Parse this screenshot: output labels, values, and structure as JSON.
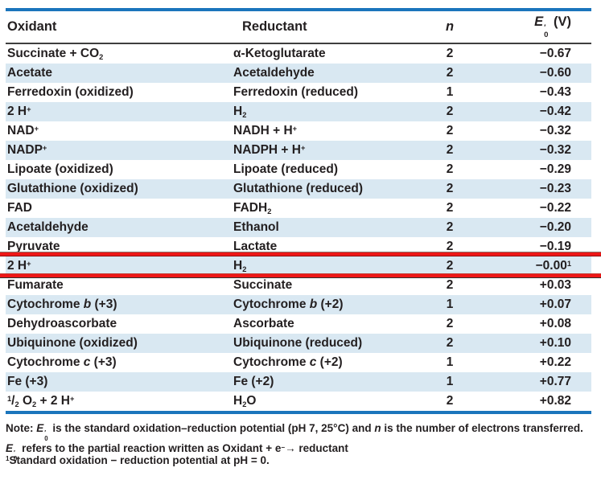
{
  "colors": {
    "rule_blue": "#1b75bc",
    "row_alt_blue": "#d9e8f2",
    "highlight_red": "#ee1717",
    "header_rule": "#3f3f3f",
    "text": "#231f20"
  },
  "table": {
    "columns": [
      "oxidant",
      "reductant",
      "n",
      "e"
    ],
    "header": {
      "oxidant": "Oxidant",
      "reductant": "Reductant",
      "n": "*n*",
      "e": "*E*~′|0~ (V)"
    },
    "rows": [
      {
        "oxidant": "Succinate + CO_2_",
        "reductant": "α-Ketoglutarate",
        "n": "2",
        "e": "−0.67",
        "highlighted": false
      },
      {
        "oxidant": "Acetate",
        "reductant": "Acetaldehyde",
        "n": "2",
        "e": "−0.60",
        "highlighted": false
      },
      {
        "oxidant": "Ferredoxin (oxidized)",
        "reductant": "Ferredoxin (reduced)",
        "n": "1",
        "e": "−0.43",
        "highlighted": false
      },
      {
        "oxidant": "2 H^+^",
        "reductant": "H_2_",
        "n": "2",
        "e": "−0.42",
        "highlighted": false
      },
      {
        "oxidant": "NAD^+^",
        "reductant": "NADH + H^+^",
        "n": "2",
        "e": "−0.32",
        "highlighted": false
      },
      {
        "oxidant": "NADP^+^",
        "reductant": "NADPH + H^+^",
        "n": "2",
        "e": "−0.32",
        "highlighted": false
      },
      {
        "oxidant": "Lipoate (oxidized)",
        "reductant": "Lipoate (reduced)",
        "n": "2",
        "e": "−0.29",
        "highlighted": false
      },
      {
        "oxidant": "Glutathione (oxidized)",
        "reductant": "Glutathione (reduced)",
        "n": "2",
        "e": "−0.23",
        "highlighted": false
      },
      {
        "oxidant": "FAD",
        "reductant": "FADH_2_",
        "n": "2",
        "e": "−0.22",
        "highlighted": false
      },
      {
        "oxidant": "Acetaldehyde",
        "reductant": "Ethanol",
        "n": "2",
        "e": "−0.20",
        "highlighted": false
      },
      {
        "oxidant": "Pyruvate",
        "reductant": "Lactate",
        "n": "2",
        "e": "−0.19",
        "highlighted": false
      },
      {
        "oxidant": "2 H^+^",
        "reductant": "H_2_",
        "n": "2",
        "e": "−0.00^1^",
        "highlighted": true
      },
      {
        "oxidant": "Fumarate",
        "reductant": "Succinate",
        "n": "2",
        "e": "+0.03",
        "highlighted": false
      },
      {
        "oxidant": "Cytochrome *b* (+3)",
        "reductant": "Cytochrome *b* (+2)",
        "n": "1",
        "e": "+0.07",
        "highlighted": false
      },
      {
        "oxidant": "Dehydroascorbate",
        "reductant": "Ascorbate",
        "n": "2",
        "e": "+0.08",
        "highlighted": false
      },
      {
        "oxidant": "Ubiquinone (oxidized)",
        "reductant": "Ubiquinone (reduced)",
        "n": "2",
        "e": "+0.10",
        "highlighted": false
      },
      {
        "oxidant": "Cytochrome *c* (+3)",
        "reductant": "Cytochrome *c* (+2)",
        "n": "1",
        "e": "+0.22",
        "highlighted": false
      },
      {
        "oxidant": "Fe (+3)",
        "reductant": "Fe (+2)",
        "n": "1",
        "e": "+0.77",
        "highlighted": false
      },
      {
        "oxidant": "^1^/_2_ O_2_ + 2 H^+^",
        "reductant": "H_2_O",
        "n": "2",
        "e": "+0.82",
        "highlighted": false
      }
    ]
  },
  "notes": {
    "note": "Note: *E*~′|0~ is the standard oxidation–reduction potential (pH 7, 25°C) and *n* is the number of electrons transferred. *E*~′|0~ refers to the partial reaction written as Oxidant + e^−^→ reductant",
    "footnote": "^1^Standard oxidation − reduction potential at pH = 0."
  }
}
